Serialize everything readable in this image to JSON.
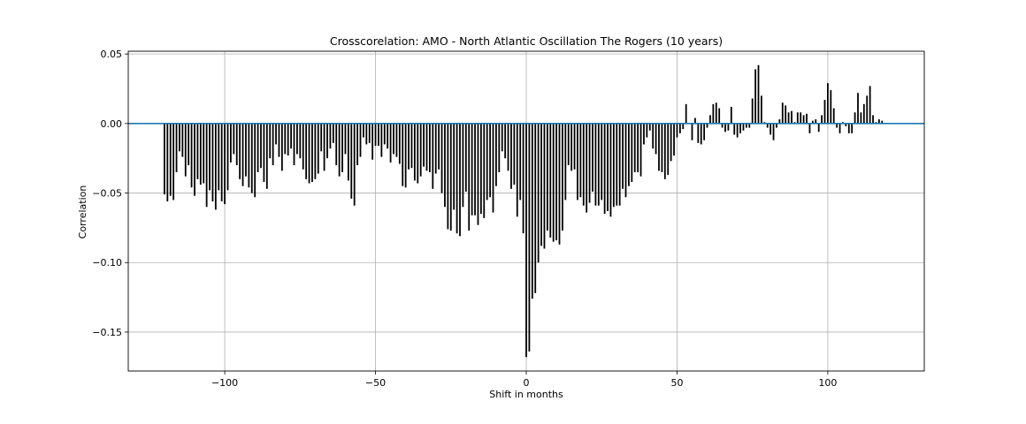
{
  "chart_data": {
    "type": "bar",
    "title": "Crosscorelation: AMO - North Atlantic Oscillation The Rogers (10 years)",
    "xlabel": "Shift in months",
    "ylabel": "Correlation",
    "xlim": [
      -132,
      132
    ],
    "ylim": [
      -0.178,
      0.052
    ],
    "xticks": [
      -100,
      -50,
      0,
      50,
      100
    ],
    "xtick_labels": [
      "−100",
      "−50",
      "0",
      "50",
      "100"
    ],
    "yticks": [
      0.05,
      0.0,
      -0.05,
      -0.1,
      -0.15
    ],
    "ytick_labels": [
      "0.05",
      "0.00",
      "−0.05",
      "−0.10",
      "−0.15"
    ],
    "grid": true,
    "bar_color": "#000000",
    "zero_line_color": "#1f77b4",
    "x_start": -120,
    "x_step": 1,
    "values": [
      -0.051,
      -0.056,
      -0.052,
      -0.055,
      -0.035,
      -0.02,
      -0.024,
      -0.038,
      -0.03,
      -0.046,
      -0.052,
      -0.04,
      -0.044,
      -0.043,
      -0.06,
      -0.048,
      -0.056,
      -0.062,
      -0.048,
      -0.056,
      -0.058,
      -0.048,
      -0.028,
      -0.022,
      -0.03,
      -0.04,
      -0.045,
      -0.038,
      -0.046,
      -0.05,
      -0.053,
      -0.035,
      -0.032,
      -0.042,
      -0.047,
      -0.025,
      -0.03,
      -0.015,
      -0.024,
      -0.034,
      -0.022,
      -0.023,
      -0.018,
      -0.03,
      -0.022,
      -0.025,
      -0.033,
      -0.04,
      -0.043,
      -0.042,
      -0.04,
      -0.036,
      -0.02,
      -0.034,
      -0.025,
      -0.018,
      -0.014,
      -0.03,
      -0.038,
      -0.035,
      -0.022,
      -0.041,
      -0.054,
      -0.059,
      -0.03,
      -0.024,
      -0.01,
      -0.015,
      -0.014,
      -0.026,
      -0.016,
      -0.016,
      -0.024,
      -0.015,
      -0.018,
      -0.028,
      -0.022,
      -0.024,
      -0.029,
      -0.045,
      -0.046,
      -0.033,
      -0.032,
      -0.041,
      -0.043,
      -0.038,
      -0.031,
      -0.034,
      -0.035,
      -0.047,
      -0.036,
      -0.033,
      -0.05,
      -0.06,
      -0.076,
      -0.077,
      -0.062,
      -0.079,
      -0.081,
      -0.06,
      -0.049,
      -0.077,
      -0.066,
      -0.066,
      -0.073,
      -0.065,
      -0.068,
      -0.055,
      -0.053,
      -0.064,
      -0.045,
      -0.035,
      -0.02,
      -0.025,
      -0.034,
      -0.047,
      -0.044,
      -0.067,
      -0.055,
      -0.079,
      -0.168,
      -0.164,
      -0.126,
      -0.122,
      -0.1,
      -0.088,
      -0.09,
      -0.077,
      -0.082,
      -0.085,
      -0.084,
      -0.087,
      -0.077,
      -0.055,
      -0.03,
      -0.034,
      -0.033,
      -0.055,
      -0.053,
      -0.059,
      -0.064,
      -0.057,
      -0.049,
      -0.059,
      -0.059,
      -0.055,
      -0.065,
      -0.063,
      -0.067,
      -0.06,
      -0.059,
      -0.059,
      -0.047,
      -0.053,
      -0.045,
      -0.042,
      -0.035,
      -0.035,
      -0.038,
      -0.015,
      -0.01,
      -0.005,
      -0.018,
      -0.022,
      -0.034,
      -0.035,
      -0.04,
      -0.037,
      -0.027,
      -0.023,
      -0.01,
      -0.007,
      -0.004,
      0.014,
      0.0,
      -0.012,
      0.004,
      -0.014,
      -0.015,
      -0.012,
      -0.003,
      0.006,
      0.014,
      0.015,
      0.011,
      -0.003,
      -0.006,
      -0.005,
      0.012,
      -0.008,
      -0.01,
      -0.007,
      -0.005,
      -0.003,
      -0.003,
      0.018,
      0.039,
      0.042,
      0.02,
      0.001,
      -0.003,
      -0.008,
      -0.012,
      -0.003,
      0.003,
      0.015,
      0.013,
      0.008,
      0.009,
      0.001,
      0.008,
      0.008,
      0.006,
      0.007,
      -0.007,
      0.002,
      0.003,
      -0.006,
      0.006,
      0.017,
      0.029,
      0.024,
      0.011,
      -0.003,
      -0.007,
      0.001,
      -0.002,
      -0.007,
      -0.007,
      0.008,
      0.022,
      0.008,
      0.014,
      0.02,
      0.027,
      0.006,
      0.001,
      0.003,
      0.002
    ]
  }
}
